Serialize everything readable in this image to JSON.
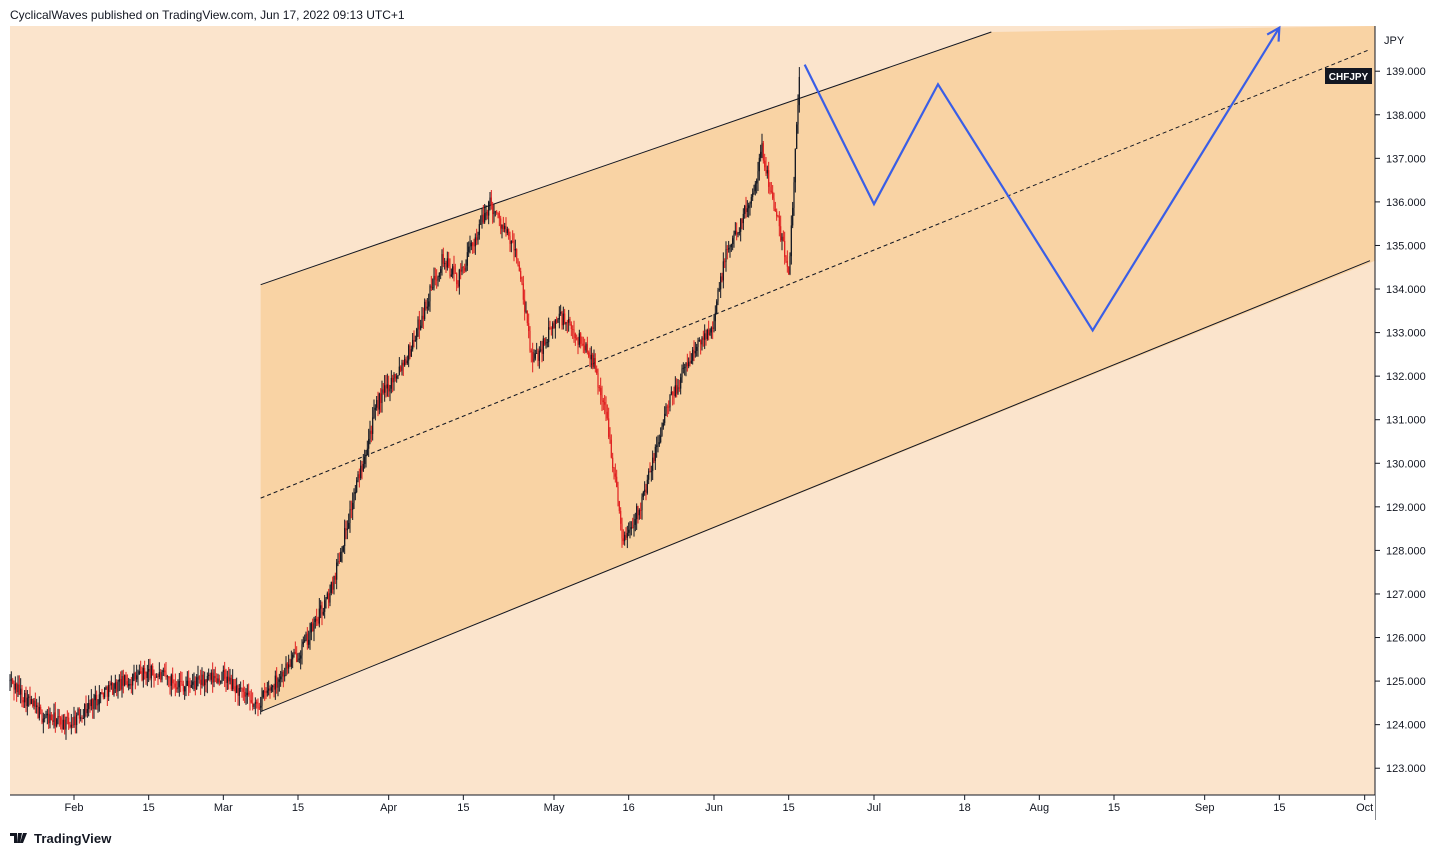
{
  "header": {
    "publisher_line": "CyclicalWaves published on TradingView.com, Jun 17, 2022 09:13 UTC+1"
  },
  "footer": {
    "brand": "TradingView"
  },
  "colors": {
    "background": "#fbe4cc",
    "channel_fill": "#f9d3a4",
    "candle_up": "#131722",
    "candle_down": "#e02020",
    "projection": "#3a5ee6",
    "axis_bg": "#ffffff"
  },
  "chart_data": {
    "type": "candlestick",
    "symbol": "CHFJPY",
    "currency": "JPY",
    "x_ticks": [
      "Feb",
      "15",
      "Mar",
      "15",
      "Apr",
      "15",
      "May",
      "16",
      "Jun",
      "15",
      "Jul",
      "18",
      "Aug",
      "15",
      "Sep",
      "15",
      "Oct"
    ],
    "y_ticks": [
      "123.000",
      "124.000",
      "125.000",
      "126.000",
      "127.000",
      "128.000",
      "129.000",
      "130.000",
      "131.000",
      "132.000",
      "133.000",
      "134.000",
      "135.000",
      "136.000",
      "137.000",
      "138.000",
      "139.000"
    ],
    "ylim": [
      122.5,
      139.9
    ],
    "xlim": [
      "2022-01-20",
      "2022-10-02"
    ],
    "price_path": [
      [
        "2022-01-20",
        125.0
      ],
      [
        "2022-01-26",
        124.2
      ],
      [
        "2022-01-31",
        124.0
      ],
      [
        "2022-02-07",
        124.8
      ],
      [
        "2022-02-15",
        125.2
      ],
      [
        "2022-02-22",
        124.9
      ],
      [
        "2022-03-01",
        125.1
      ],
      [
        "2022-03-07",
        124.4
      ],
      [
        "2022-03-16",
        125.8
      ],
      [
        "2022-03-21",
        127.0
      ],
      [
        "2022-03-28",
        130.5
      ],
      [
        "2022-03-30",
        131.4
      ],
      [
        "2022-04-05",
        132.6
      ],
      [
        "2022-04-11",
        134.7
      ],
      [
        "2022-04-14",
        134.2
      ],
      [
        "2022-04-20",
        136.0
      ],
      [
        "2022-04-25",
        134.8
      ],
      [
        "2022-04-28",
        132.3
      ],
      [
        "2022-05-03",
        133.4
      ],
      [
        "2022-05-09",
        132.5
      ],
      [
        "2022-05-12",
        131.0
      ],
      [
        "2022-05-15",
        128.2
      ],
      [
        "2022-05-19",
        129.3
      ],
      [
        "2022-05-23",
        131.2
      ],
      [
        "2022-05-27",
        132.3
      ],
      [
        "2022-06-01",
        133.3
      ],
      [
        "2022-06-03",
        134.7
      ],
      [
        "2022-06-08",
        136.1
      ],
      [
        "2022-06-10",
        137.2
      ],
      [
        "2022-06-13",
        135.5
      ],
      [
        "2022-06-15",
        134.4
      ],
      [
        "2022-06-16",
        136.5
      ],
      [
        "2022-06-17",
        139.0
      ]
    ],
    "channel": {
      "upper": [
        [
          "2022-03-08",
          134.1
        ],
        [
          "2022-07-23",
          139.9
        ]
      ],
      "lower": [
        [
          "2022-03-08",
          124.3
        ],
        [
          "2022-10-02",
          134.65
        ]
      ],
      "middle": [
        [
          "2022-03-08",
          129.2
        ],
        [
          "2022-10-02",
          139.5
        ]
      ]
    },
    "projection": [
      [
        "2022-06-18",
        139.15
      ],
      [
        "2022-07-01",
        135.95
      ],
      [
        "2022-07-13",
        138.7
      ],
      [
        "2022-08-11",
        133.05
      ],
      [
        "2022-09-15",
        140.0
      ]
    ],
    "last_price_label": "CHFJPY"
  }
}
